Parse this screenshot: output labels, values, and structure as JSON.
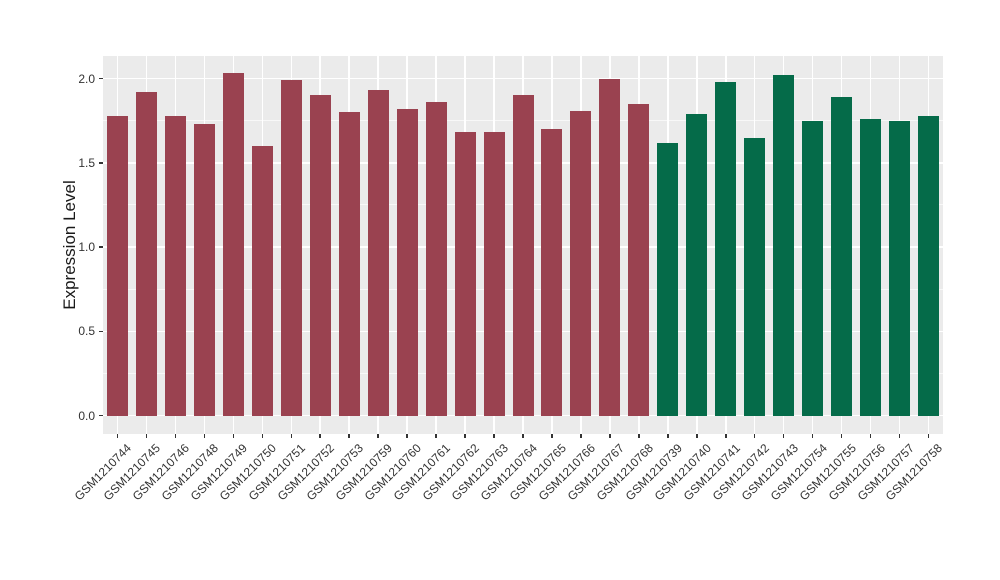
{
  "chart_data": {
    "type": "bar",
    "title": "",
    "xlabel": "",
    "ylabel": "Expression Level",
    "ylim": [
      0,
      2.13
    ],
    "ytick_labels": [
      "0.0",
      "0.5",
      "1.0",
      "1.5",
      "2.0"
    ],
    "ytick_values": [
      0,
      0.5,
      1,
      1.5,
      2
    ],
    "grid": "major and minor horizontal white lines, major vertical white lines at category centers",
    "legend_position": "none",
    "panel_bg": "#EBEBEB",
    "grid_color": "#FFFFFF",
    "series": [
      {
        "color": "#9A4250",
        "categories": [
          "GSM1210744",
          "GSM1210745",
          "GSM1210746",
          "GSM1210748",
          "GSM1210749",
          "GSM1210750",
          "GSM1210751",
          "GSM1210752",
          "GSM1210753",
          "GSM1210759",
          "GSM1210760",
          "GSM1210761",
          "GSM1210762",
          "GSM1210763",
          "GSM1210764",
          "GSM1210765",
          "GSM1210766",
          "GSM1210767",
          "GSM1210768"
        ],
        "values": [
          1.78,
          1.92,
          1.78,
          1.73,
          2.03,
          1.6,
          1.99,
          1.9,
          1.8,
          1.93,
          1.82,
          1.86,
          1.68,
          1.68,
          1.9,
          1.7,
          1.81,
          2.0,
          1.85
        ]
      },
      {
        "color": "#056B49",
        "categories": [
          "GSM1210739",
          "GSM1210740",
          "GSM1210741",
          "GSM1210742",
          "GSM1210743",
          "GSM1210754",
          "GSM1210755",
          "GSM1210756",
          "GSM1210757",
          "GSM1210758"
        ],
        "values": [
          1.62,
          1.79,
          1.98,
          1.65,
          2.02,
          1.75,
          1.89,
          1.76,
          1.75,
          1.78
        ]
      }
    ]
  }
}
